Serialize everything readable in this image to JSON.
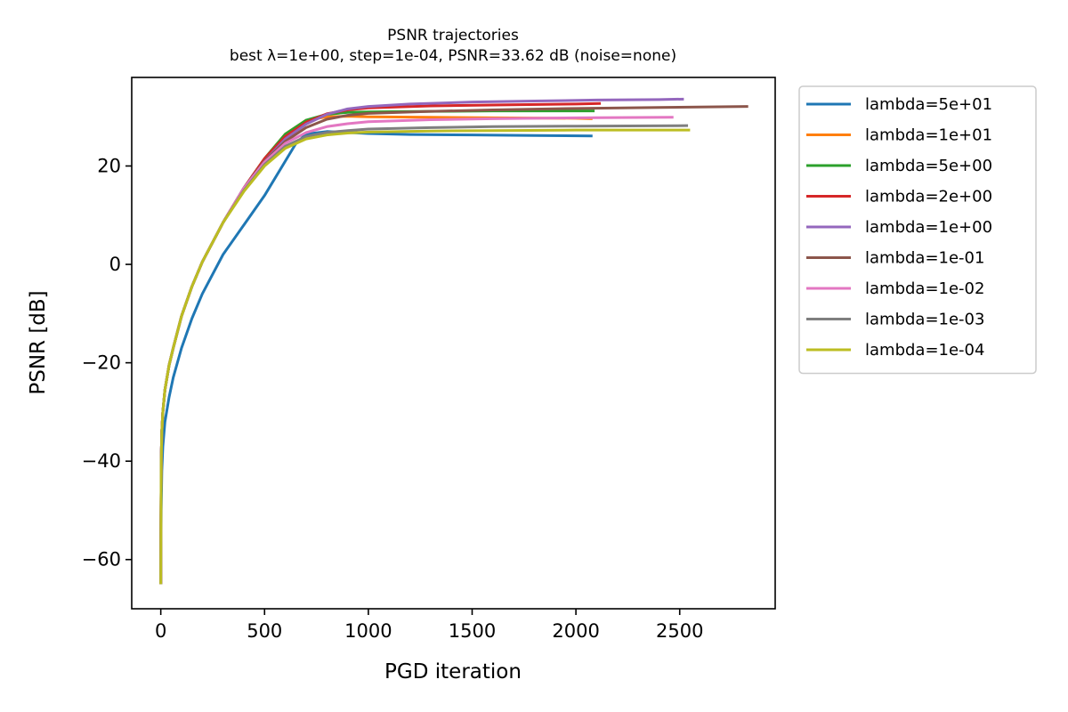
{
  "chart_data": {
    "type": "line",
    "title": "PSNR trajectories",
    "subtitle": "best λ=1e+00, step=1e-04, PSNR=33.62 dB (noise=none)",
    "xlabel": "PGD iteration",
    "ylabel": "PSNR [dB]",
    "xlim": [
      -140,
      2960
    ],
    "ylim": [
      -70,
      38
    ],
    "xticks": [
      0,
      500,
      1000,
      1500,
      2000,
      2500
    ],
    "yticks": [
      -60,
      -40,
      -20,
      0,
      20
    ],
    "xtick_labels": [
      "0",
      "500",
      "1000",
      "1500",
      "2000",
      "2500"
    ],
    "ytick_labels": [
      "−60",
      "−40",
      "−20",
      "0",
      "20"
    ],
    "grid": false,
    "legend_position": "outside-right-top",
    "series": [
      {
        "name": "lambda=5e+01",
        "color": "#1f77b4",
        "x": [
          0,
          2,
          5,
          10,
          20,
          40,
          60,
          100,
          150,
          200,
          300,
          400,
          500,
          600,
          650,
          700,
          800,
          900,
          1000,
          1200,
          1500,
          1800,
          2080
        ],
        "y": [
          -65,
          -50,
          -42,
          -37,
          -32,
          -27,
          -23,
          -17,
          -11,
          -6,
          2,
          8,
          14,
          21,
          24.5,
          26.5,
          27.0,
          26.8,
          26.6,
          26.4,
          26.3,
          26.2,
          26.1
        ]
      },
      {
        "name": "lambda=1e+01",
        "color": "#ff7f0e",
        "x": [
          0,
          2,
          5,
          10,
          20,
          40,
          60,
          100,
          150,
          200,
          300,
          400,
          500,
          600,
          700,
          800,
          900,
          1000,
          1300,
          1600,
          2000,
          2080
        ],
        "y": [
          -65,
          -40,
          -34,
          -30,
          -25.5,
          -20.5,
          -17,
          -10.5,
          -4.5,
          0.5,
          8.5,
          15.5,
          21.5,
          26.5,
          29.3,
          30.0,
          30.1,
          30.0,
          29.9,
          29.8,
          29.7,
          29.6
        ]
      },
      {
        "name": "lambda=5e+00",
        "color": "#2ca02c",
        "x": [
          0,
          2,
          5,
          10,
          20,
          40,
          60,
          100,
          150,
          200,
          300,
          400,
          500,
          600,
          700,
          800,
          900,
          1000,
          1300,
          1600,
          2000,
          2090
        ],
        "y": [
          -65,
          -40,
          -34,
          -30,
          -25.5,
          -20.5,
          -17,
          -10.5,
          -4.5,
          0.5,
          8.5,
          15.5,
          21.5,
          26.5,
          29.3,
          30.5,
          30.9,
          31.0,
          31.1,
          31.2,
          31.2,
          31.2
        ]
      },
      {
        "name": "lambda=2e+00",
        "color": "#d62728",
        "x": [
          0,
          2,
          5,
          10,
          20,
          40,
          60,
          100,
          150,
          200,
          300,
          400,
          500,
          600,
          700,
          800,
          900,
          1000,
          1300,
          1600,
          2000,
          2120
        ],
        "y": [
          -65,
          -40,
          -34,
          -30,
          -25.5,
          -20.5,
          -17,
          -10.5,
          -4.5,
          0.5,
          8.5,
          15.5,
          21.5,
          26.0,
          28.9,
          30.6,
          31.4,
          31.8,
          32.2,
          32.4,
          32.6,
          32.7
        ]
      },
      {
        "name": "lambda=1e+00",
        "color": "#9467bd",
        "x": [
          0,
          2,
          5,
          10,
          20,
          40,
          60,
          100,
          150,
          200,
          300,
          400,
          500,
          600,
          700,
          800,
          900,
          1000,
          1200,
          1500,
          1800,
          2100,
          2400,
          2520
        ],
        "y": [
          -65,
          -40,
          -34,
          -30,
          -25.5,
          -20.5,
          -17,
          -10.5,
          -4.5,
          0.5,
          8.5,
          15.5,
          21.0,
          25.5,
          28.5,
          30.5,
          31.6,
          32.1,
          32.6,
          33.0,
          33.2,
          33.4,
          33.5,
          33.6
        ]
      },
      {
        "name": "lambda=1e-01",
        "color": "#8c564b",
        "x": [
          0,
          2,
          5,
          10,
          20,
          40,
          60,
          100,
          150,
          200,
          300,
          400,
          500,
          600,
          700,
          800,
          900,
          1000,
          1300,
          1600,
          2000,
          2400,
          2830
        ],
        "y": [
          -65,
          -40,
          -34,
          -30,
          -25.5,
          -20.5,
          -17,
          -10.5,
          -4.5,
          0.5,
          8.5,
          15.5,
          21.0,
          25.0,
          27.8,
          29.5,
          30.3,
          30.7,
          31.1,
          31.4,
          31.7,
          31.9,
          32.1
        ]
      },
      {
        "name": "lambda=1e-02",
        "color": "#e377c2",
        "x": [
          0,
          2,
          5,
          10,
          20,
          40,
          60,
          100,
          150,
          200,
          300,
          400,
          500,
          600,
          700,
          800,
          900,
          1000,
          1300,
          1600,
          2000,
          2470
        ],
        "y": [
          -65,
          -40,
          -34,
          -30,
          -25.5,
          -20.5,
          -17,
          -10.5,
          -4.5,
          0.5,
          8.5,
          15.5,
          20.8,
          24.6,
          26.8,
          28.0,
          28.6,
          29.0,
          29.4,
          29.6,
          29.8,
          29.9
        ]
      },
      {
        "name": "lambda=1e-03",
        "color": "#7f7f7f",
        "x": [
          0,
          2,
          5,
          10,
          20,
          40,
          60,
          100,
          150,
          200,
          300,
          400,
          500,
          600,
          700,
          800,
          900,
          1000,
          1300,
          1600,
          2000,
          2540
        ],
        "y": [
          -65,
          -40,
          -34,
          -30,
          -25.5,
          -20.5,
          -17,
          -10.5,
          -4.5,
          0.5,
          8.5,
          15.0,
          20.3,
          24.0,
          26.0,
          26.8,
          27.2,
          27.5,
          27.8,
          28.0,
          28.1,
          28.2
        ]
      },
      {
        "name": "lambda=1e-04",
        "color": "#bcbd22",
        "x": [
          0,
          2,
          5,
          10,
          20,
          40,
          60,
          100,
          150,
          200,
          300,
          400,
          500,
          600,
          700,
          800,
          900,
          1000,
          1300,
          1600,
          2000,
          2550
        ],
        "y": [
          -65,
          -40,
          -34,
          -30,
          -25.5,
          -20.5,
          -17,
          -10.5,
          -4.5,
          0.5,
          8.5,
          14.8,
          20.0,
          23.6,
          25.5,
          26.3,
          26.7,
          26.9,
          27.1,
          27.2,
          27.3,
          27.3
        ]
      }
    ]
  }
}
